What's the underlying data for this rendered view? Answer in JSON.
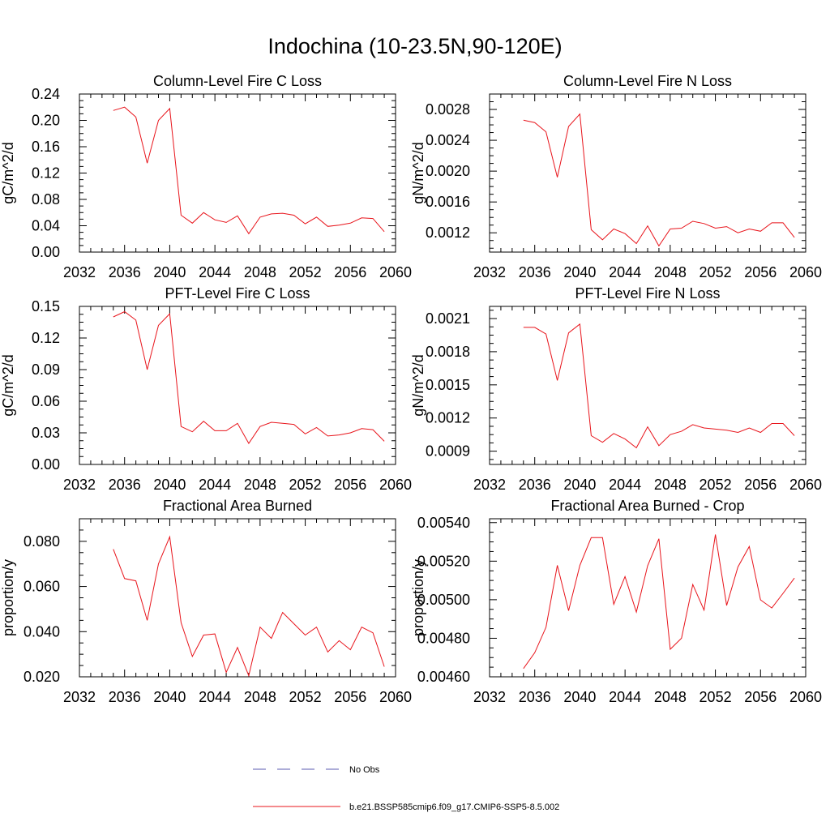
{
  "figure": {
    "title": "Indochina (10-23.5N,90-120E)"
  },
  "legend": {
    "entries": [
      {
        "label": "No Obs",
        "color": "#5b5bb0",
        "dashed": true
      },
      {
        "label": "b.e21.BSSP585cmip6.f09_g17.CMIP6-SSP5-8.5.002",
        "color": "#e8141b",
        "dashed": false
      }
    ]
  },
  "chart_data": [
    {
      "type": "line",
      "title": "Column-Level Fire C Loss",
      "ylabel": "gC/m^2/d",
      "xlim": [
        2032,
        2060
      ],
      "xticks": [
        2032,
        2036,
        2040,
        2044,
        2048,
        2052,
        2056,
        2060
      ],
      "ylim": [
        0,
        0.24
      ],
      "yticks": [
        0.0,
        0.04,
        0.08,
        0.12,
        0.16,
        0.2,
        0.24
      ],
      "ytick_labels": [
        "0.00",
        "0.04",
        "0.08",
        "0.12",
        "0.16",
        "0.20",
        "0.24"
      ],
      "x": [
        2035,
        2036,
        2037,
        2038,
        2039,
        2040,
        2041,
        2042,
        2043,
        2044,
        2045,
        2046,
        2047,
        2048,
        2049,
        2050,
        2051,
        2052,
        2053,
        2054,
        2055,
        2056,
        2057,
        2058,
        2059
      ],
      "series": [
        {
          "color": "#e8141b",
          "values": [
            0.215,
            0.22,
            0.205,
            0.135,
            0.2,
            0.218,
            0.056,
            0.044,
            0.06,
            0.049,
            0.045,
            0.055,
            0.028,
            0.053,
            0.058,
            0.059,
            0.056,
            0.043,
            0.053,
            0.039,
            0.041,
            0.044,
            0.052,
            0.051,
            0.031
          ]
        }
      ]
    },
    {
      "type": "line",
      "title": "Column-Level Fire N Loss",
      "ylabel": "gN/m^2/d",
      "xlim": [
        2032,
        2060
      ],
      "xticks": [
        2032,
        2036,
        2040,
        2044,
        2048,
        2052,
        2056,
        2060
      ],
      "ylim": [
        0.00095,
        0.003
      ],
      "yticks": [
        0.0012,
        0.0016,
        0.002,
        0.0024,
        0.0028
      ],
      "ytick_labels": [
        "0.0012",
        "0.0016",
        "0.0020",
        "0.0024",
        "0.0028"
      ],
      "x": [
        2035,
        2036,
        2037,
        2038,
        2039,
        2040,
        2041,
        2042,
        2043,
        2044,
        2045,
        2046,
        2047,
        2048,
        2049,
        2050,
        2051,
        2052,
        2053,
        2054,
        2055,
        2056,
        2057,
        2058,
        2059
      ],
      "series": [
        {
          "color": "#e8141b",
          "values": [
            0.00266,
            0.00263,
            0.00251,
            0.00192,
            0.00258,
            0.00274,
            0.00124,
            0.00111,
            0.00125,
            0.00119,
            0.00106,
            0.00129,
            0.00103,
            0.00125,
            0.00126,
            0.00135,
            0.00132,
            0.00126,
            0.00128,
            0.0012,
            0.00125,
            0.00122,
            0.00133,
            0.00133,
            0.00114
          ]
        }
      ]
    },
    {
      "type": "line",
      "title": "PFT-Level Fire C Loss",
      "ylabel": "gC/m^2/d",
      "xlim": [
        2032,
        2060
      ],
      "xticks": [
        2032,
        2036,
        2040,
        2044,
        2048,
        2052,
        2056,
        2060
      ],
      "ylim": [
        0,
        0.15
      ],
      "yticks": [
        0.0,
        0.03,
        0.06,
        0.09,
        0.12,
        0.15
      ],
      "ytick_labels": [
        "0.00",
        "0.03",
        "0.06",
        "0.09",
        "0.12",
        "0.15"
      ],
      "x": [
        2035,
        2036,
        2037,
        2038,
        2039,
        2040,
        2041,
        2042,
        2043,
        2044,
        2045,
        2046,
        2047,
        2048,
        2049,
        2050,
        2051,
        2052,
        2053,
        2054,
        2055,
        2056,
        2057,
        2058,
        2059
      ],
      "series": [
        {
          "color": "#e8141b",
          "values": [
            0.14,
            0.145,
            0.137,
            0.09,
            0.132,
            0.143,
            0.036,
            0.031,
            0.041,
            0.032,
            0.032,
            0.039,
            0.02,
            0.036,
            0.04,
            0.039,
            0.038,
            0.029,
            0.035,
            0.027,
            0.028,
            0.03,
            0.034,
            0.033,
            0.022
          ]
        }
      ]
    },
    {
      "type": "line",
      "title": "PFT-Level Fire N Loss",
      "ylabel": "gN/m^2/d",
      "xlim": [
        2032,
        2060
      ],
      "xticks": [
        2032,
        2036,
        2040,
        2044,
        2048,
        2052,
        2056,
        2060
      ],
      "ylim": [
        0.00078,
        0.00221
      ],
      "yticks": [
        0.0009,
        0.0012,
        0.0015,
        0.0018,
        0.0021
      ],
      "ytick_labels": [
        "0.0009",
        "0.0012",
        "0.0015",
        "0.0018",
        "0.0021"
      ],
      "x": [
        2035,
        2036,
        2037,
        2038,
        2039,
        2040,
        2041,
        2042,
        2043,
        2044,
        2045,
        2046,
        2047,
        2048,
        2049,
        2050,
        2051,
        2052,
        2053,
        2054,
        2055,
        2056,
        2057,
        2058,
        2059
      ],
      "series": [
        {
          "color": "#e8141b",
          "values": [
            0.00202,
            0.00202,
            0.00196,
            0.00154,
            0.00197,
            0.00205,
            0.00104,
            0.00098,
            0.00106,
            0.00101,
            0.00093,
            0.00112,
            0.00095,
            0.00105,
            0.00108,
            0.00114,
            0.00111,
            0.0011,
            0.00109,
            0.00107,
            0.00111,
            0.00107,
            0.00115,
            0.00115,
            0.00104
          ]
        }
      ]
    },
    {
      "type": "line",
      "title": "Fractional Area Burned",
      "ylabel": "proportion/y",
      "xlim": [
        2032,
        2060
      ],
      "xticks": [
        2032,
        2036,
        2040,
        2044,
        2048,
        2052,
        2056,
        2060
      ],
      "ylim": [
        0.02,
        0.09
      ],
      "yticks": [
        0.02,
        0.04,
        0.06,
        0.08
      ],
      "ytick_labels": [
        "0.020",
        "0.040",
        "0.060",
        "0.080"
      ],
      "x": [
        2035,
        2036,
        2037,
        2038,
        2039,
        2040,
        2041,
        2042,
        2043,
        2044,
        2045,
        2046,
        2047,
        2048,
        2049,
        2050,
        2051,
        2052,
        2053,
        2054,
        2055,
        2056,
        2057,
        2058,
        2059
      ],
      "series": [
        {
          "color": "#e8141b",
          "values": [
            0.0765,
            0.0635,
            0.0625,
            0.045,
            0.07,
            0.082,
            0.044,
            0.029,
            0.0385,
            0.039,
            0.022,
            0.033,
            0.0205,
            0.042,
            0.037,
            0.0485,
            0.0435,
            0.0385,
            0.042,
            0.031,
            0.036,
            0.032,
            0.042,
            0.0395,
            0.0245
          ]
        }
      ]
    },
    {
      "type": "line",
      "title": "Fractional Area Burned - Crop",
      "ylabel": "proportion/y",
      "xlim": [
        2032,
        2060
      ],
      "xticks": [
        2032,
        2036,
        2040,
        2044,
        2048,
        2052,
        2056,
        2060
      ],
      "ylim": [
        0.0046,
        0.00542
      ],
      "yticks": [
        0.0046,
        0.0048,
        0.005,
        0.0052,
        0.0054
      ],
      "ytick_labels": [
        "0.00460",
        "0.00480",
        "0.00500",
        "0.00520",
        "0.00540"
      ],
      "x": [
        2035,
        2036,
        2037,
        2038,
        2039,
        2040,
        2041,
        2042,
        2043,
        2044,
        2045,
        2046,
        2047,
        2048,
        2049,
        2050,
        2051,
        2052,
        2053,
        2054,
        2055,
        2056,
        2057,
        2058,
        2059
      ],
      "series": [
        {
          "color": "#e8141b",
          "values": [
            0.004643,
            0.004725,
            0.004857,
            0.005178,
            0.004943,
            0.005178,
            0.005322,
            0.005322,
            0.004976,
            0.00512,
            0.004936,
            0.005176,
            0.005316,
            0.004743,
            0.0048,
            0.005079,
            0.004946,
            0.005338,
            0.00497,
            0.00517,
            0.005276,
            0.004999,
            0.004957,
            0.005033,
            0.005112
          ]
        }
      ]
    }
  ]
}
